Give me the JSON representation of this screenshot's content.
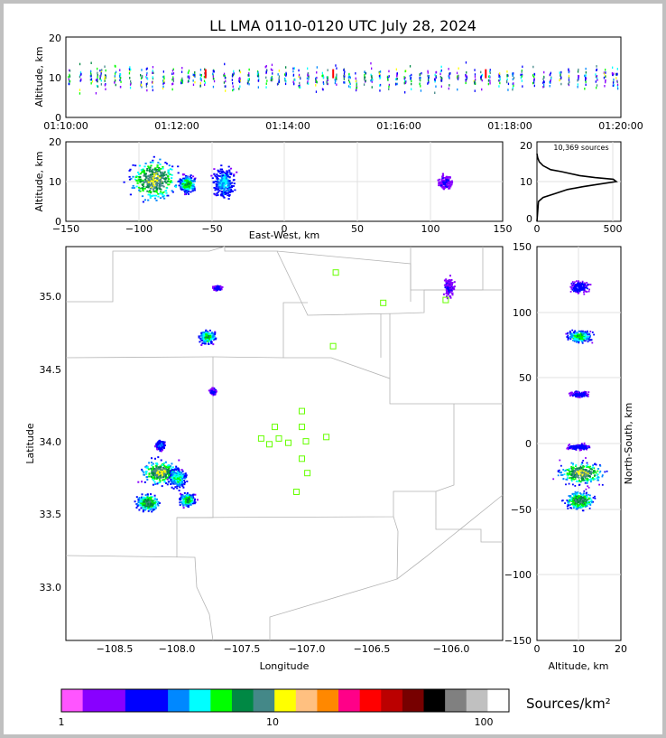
{
  "chart_data": [
    {
      "id": "time_height",
      "type": "scatter",
      "title": "LL LMA 0110-0120 UTC July 28, 2024",
      "ylabel": "Altitude, km",
      "ylim": [
        0,
        20
      ],
      "yticks": [
        "0",
        "10",
        "20"
      ],
      "xticks": [
        "01:10:00",
        "01:12:00",
        "01:14:00",
        "01:16:00",
        "01:18:00",
        "01:20:00"
      ],
      "xlim_minutes": [
        0,
        10
      ],
      "streak_minutes": [
        0.05,
        0.25,
        0.45,
        0.55,
        0.62,
        0.7,
        0.88,
        0.97,
        1.15,
        1.35,
        1.45,
        1.55,
        1.75,
        1.92,
        2.08,
        2.2,
        2.3,
        2.42,
        2.5,
        2.65,
        2.85,
        3.0,
        3.12,
        3.28,
        3.45,
        3.6,
        3.7,
        3.82,
        3.95,
        4.1,
        4.2,
        4.35,
        4.5,
        4.62,
        4.7,
        4.85,
        5.0,
        5.1,
        5.22,
        5.38,
        5.5,
        5.65,
        5.8,
        5.95,
        6.1,
        6.2,
        6.38,
        6.52,
        6.65,
        6.75,
        6.9,
        7.05,
        7.2,
        7.35,
        7.48,
        7.62,
        7.8,
        7.95,
        8.05,
        8.2,
        8.42,
        8.6,
        8.72,
        8.9,
        9.05,
        9.22,
        9.35,
        9.55,
        9.7,
        9.85,
        9.92
      ],
      "hot_minutes": [
        2.5,
        4.8,
        7.55
      ]
    },
    {
      "id": "ew_height",
      "type": "heatmap",
      "xlabel": "East-West, km",
      "ylabel": "Altitude, km",
      "xlim": [
        -150,
        150
      ],
      "ylim": [
        0,
        20
      ],
      "xticks": [
        "−150",
        "−100",
        "−50",
        "0",
        "50",
        "100",
        "150"
      ],
      "yticks": [
        "0",
        "10",
        "20"
      ],
      "clusters": [
        {
          "x": -90,
          "y": 10.5,
          "rx": 14,
          "ry": 4.5,
          "peak": 9
        },
        {
          "x": -67,
          "y": 9.5,
          "rx": 5,
          "ry": 1.8,
          "peak": 7
        },
        {
          "x": -42,
          "y": 10,
          "rx": 7,
          "ry": 3.5,
          "peak": 5
        },
        {
          "x": 110,
          "y": 10,
          "rx": 4,
          "ry": 1.5,
          "peak": 2
        }
      ]
    },
    {
      "id": "alt_hist",
      "type": "line",
      "annotation": "10,369 sources",
      "xlim": [
        0,
        550
      ],
      "ylim": [
        0,
        20
      ],
      "xticks": [
        "0",
        "500"
      ],
      "yticks": [
        "0",
        "10",
        "20"
      ],
      "profile": [
        [
          0,
          0
        ],
        [
          10,
          5
        ],
        [
          40,
          6
        ],
        [
          120,
          7
        ],
        [
          200,
          8
        ],
        [
          300,
          8.7
        ],
        [
          400,
          9.3
        ],
        [
          520,
          10
        ],
        [
          500,
          10.6
        ],
        [
          380,
          11
        ],
        [
          280,
          11.5
        ],
        [
          160,
          12.5
        ],
        [
          90,
          13
        ],
        [
          40,
          14
        ],
        [
          15,
          15
        ],
        [
          5,
          16
        ],
        [
          0,
          17
        ]
      ]
    },
    {
      "id": "plan_view",
      "type": "heatmap",
      "xlabel": "Longitude",
      "ylabel": "Latitude",
      "xlim": [
        -108.82,
        -105.6
      ],
      "ylim": [
        32.62,
        35.35
      ],
      "xticks": [
        "−108.5",
        "−108.0",
        "−107.5",
        "−107.0",
        "−106.5",
        "−106.0"
      ],
      "yticks": [
        "33.0",
        "33.5",
        "34.0",
        "34.5",
        "35.0"
      ],
      "stations": [
        [
          -106.83,
          35.17
        ],
        [
          -106.48,
          34.96
        ],
        [
          -106.02,
          34.98
        ],
        [
          -106.85,
          34.66
        ],
        [
          -107.08,
          34.21
        ],
        [
          -107.28,
          34.1
        ],
        [
          -107.08,
          34.1
        ],
        [
          -107.38,
          34.02
        ],
        [
          -107.25,
          34.02
        ],
        [
          -107.32,
          33.98
        ],
        [
          -107.18,
          33.99
        ],
        [
          -107.05,
          34.0
        ],
        [
          -106.9,
          34.03
        ],
        [
          -107.08,
          33.88
        ],
        [
          -107.04,
          33.78
        ],
        [
          -107.12,
          33.65
        ]
      ],
      "clusters": [
        {
          "lon": -108.13,
          "lat": 33.79,
          "rx": 0.11,
          "ry": 0.07,
          "peak": 9
        },
        {
          "lon": -108.0,
          "lat": 33.75,
          "rx": 0.06,
          "ry": 0.06,
          "peak": 6
        },
        {
          "lon": -108.22,
          "lat": 33.58,
          "rx": 0.07,
          "ry": 0.05,
          "peak": 8
        },
        {
          "lon": -107.93,
          "lat": 33.6,
          "rx": 0.05,
          "ry": 0.04,
          "peak": 7
        },
        {
          "lon": -108.13,
          "lat": 33.98,
          "rx": 0.03,
          "ry": 0.03,
          "peak": 4
        },
        {
          "lon": -107.78,
          "lat": 34.73,
          "rx": 0.05,
          "ry": 0.04,
          "peak": 7
        },
        {
          "lon": -107.74,
          "lat": 34.35,
          "rx": 0.02,
          "ry": 0.02,
          "peak": 3
        },
        {
          "lon": -107.71,
          "lat": 35.07,
          "rx": 0.025,
          "ry": 0.015,
          "peak": 3
        },
        {
          "lon": -106.0,
          "lat": 35.07,
          "rx": 0.035,
          "ry": 0.06,
          "peak": 2
        }
      ]
    },
    {
      "id": "ns_height",
      "type": "heatmap",
      "xlabel": "Altitude, km",
      "ylabel": "North-South, km",
      "xlim": [
        0,
        20
      ],
      "ylim": [
        -150,
        150
      ],
      "xticks": [
        "0",
        "10",
        "20"
      ],
      "yticks": [
        "−150",
        "−100",
        "−50",
        "0",
        "50",
        "100",
        "150"
      ],
      "clusters": [
        {
          "x": 10.5,
          "y": -22,
          "rx": 4.5,
          "ry": 7,
          "peak": 9
        },
        {
          "x": 10,
          "y": -43,
          "rx": 3,
          "ry": 6,
          "peak": 8
        },
        {
          "x": 10,
          "y": 82,
          "rx": 2.5,
          "ry": 4,
          "peak": 7
        },
        {
          "x": 10,
          "y": -2,
          "rx": 2.5,
          "ry": 2,
          "peak": 3
        },
        {
          "x": 10,
          "y": 38,
          "rx": 2,
          "ry": 2,
          "peak": 3
        },
        {
          "x": 10,
          "y": 120,
          "rx": 2,
          "ry": 4,
          "peak": 3
        }
      ]
    }
  ],
  "colorbar": {
    "label": "Sources/km²",
    "tick_labels": [
      "1",
      "10",
      "100"
    ],
    "colors": [
      "#ff55ff",
      "#8800ff",
      "#8800ff",
      "#0000ff",
      "#0000ff",
      "#0088ff",
      "#00ffff",
      "#00ff00",
      "#008844",
      "#448888",
      "#ffff00",
      "#ffc080",
      "#ff8800",
      "#ff0088",
      "#ff0000",
      "#bb0000",
      "#770000",
      "#000000",
      "#808080",
      "#c0c0c0",
      "#ffffff"
    ]
  }
}
